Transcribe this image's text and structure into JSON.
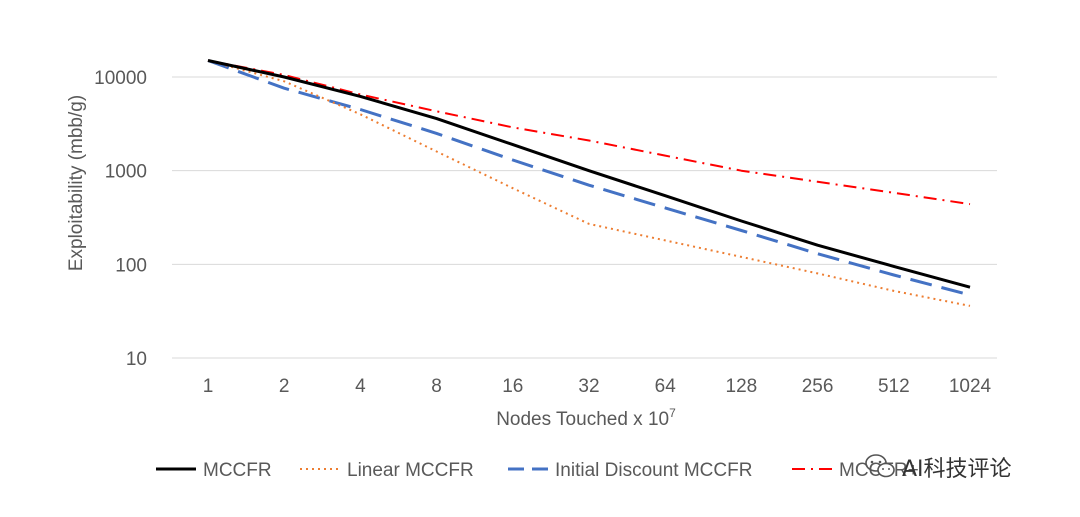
{
  "chart_data": {
    "type": "line",
    "title": "",
    "xlabel": "Nodes Touched x 10",
    "xlabel_sup": "7",
    "ylabel": "Exploitability (mbb/g)",
    "yscale": "log",
    "ylim": [
      10,
      15000
    ],
    "y_ticks": [
      10,
      100,
      1000,
      10000
    ],
    "y_tick_labels": [
      "10",
      "100",
      "1000",
      "10000"
    ],
    "categories": [
      "1",
      "2",
      "4",
      "8",
      "16",
      "32",
      "64",
      "128",
      "256",
      "512",
      "1024"
    ],
    "grid": true,
    "legend_position": "bottom",
    "series": [
      {
        "name": "MCCFR",
        "color": "#000000",
        "style": "solid",
        "values": [
          15000,
          10000,
          6200,
          3600,
          1900,
          1000,
          540,
          290,
          160,
          95,
          57
        ]
      },
      {
        "name": "Linear MCCFR",
        "color": "#ED7D31",
        "style": "dotted",
        "values": [
          15000,
          9000,
          4000,
          1600,
          650,
          270,
          180,
          120,
          80,
          52,
          36
        ]
      },
      {
        "name": "Initial Discount MCCFR",
        "color": "#4472C4",
        "style": "dashed",
        "values": [
          15000,
          7600,
          4500,
          2500,
          1300,
          700,
          400,
          230,
          130,
          77,
          47
        ]
      },
      {
        "name": "MCCFR+",
        "color": "#FF0000",
        "style": "dashdot",
        "values": [
          15000,
          10500,
          6500,
          4300,
          2900,
          2100,
          1450,
          1000,
          760,
          580,
          440
        ]
      }
    ]
  },
  "watermark": {
    "text": "AI科技评论",
    "icon": "wechat-icon"
  }
}
